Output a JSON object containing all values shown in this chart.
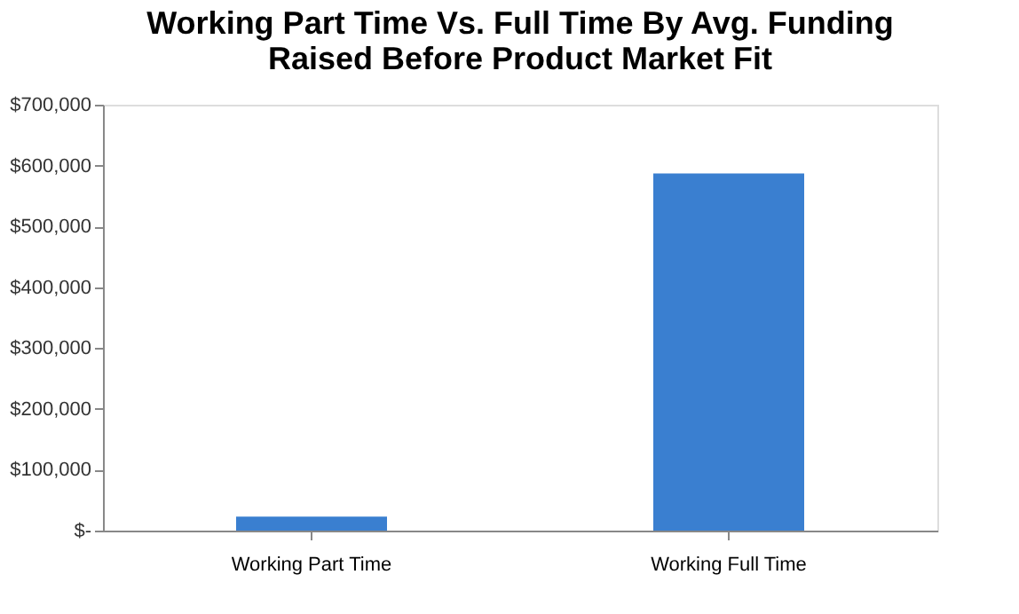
{
  "chart_data": {
    "type": "bar",
    "title": [
      "Working Part Time Vs. Full Time By Avg. Funding",
      "Raised Before Product Market Fit"
    ],
    "categories": [
      "Working Part Time",
      "Working Full Time"
    ],
    "values": [
      23000,
      587000
    ],
    "color": "#3a7fd0",
    "ylim": [
      0,
      700000
    ],
    "yticks": [
      {
        "value": 0,
        "label": "$-"
      },
      {
        "value": 100000,
        "label": "$100,000"
      },
      {
        "value": 200000,
        "label": "$200,000"
      },
      {
        "value": 300000,
        "label": "$300,000"
      },
      {
        "value": 400000,
        "label": "$400,000"
      },
      {
        "value": 500000,
        "label": "$500,000"
      },
      {
        "value": 600000,
        "label": "$600,000"
      },
      {
        "value": 700000,
        "label": "$700,000"
      }
    ],
    "grid": false
  }
}
